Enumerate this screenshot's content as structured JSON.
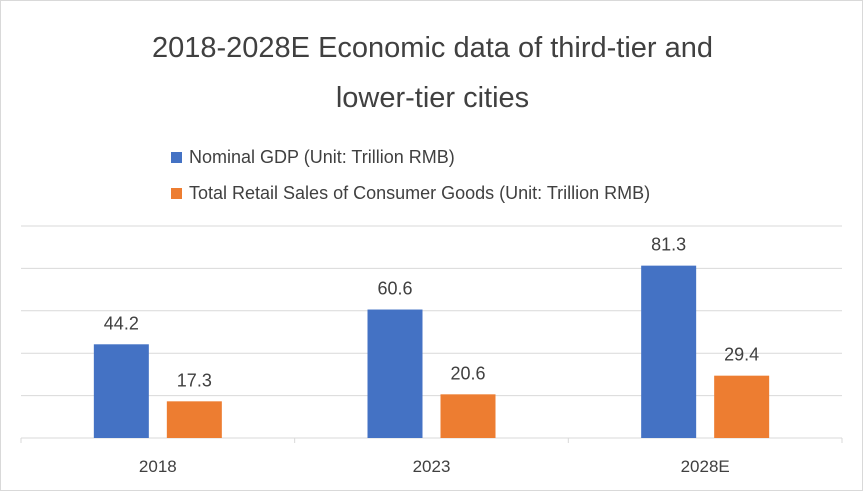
{
  "chart_data": {
    "type": "bar",
    "title": "2018-2028E Economic data of third-tier and lower-tier cities",
    "title_lines": [
      "2018-2028E Economic data of third-tier and",
      "lower-tier cities"
    ],
    "categories": [
      "2018",
      "2023",
      "2028E"
    ],
    "series": [
      {
        "name": "Nominal GDP (Unit: Trillion RMB)",
        "values": [
          44.2,
          60.6,
          81.3
        ],
        "color": "#4472C4"
      },
      {
        "name": "Total Retail Sales of Consumer Goods (Unit: Trillion RMB)",
        "values": [
          17.3,
          20.6,
          29.4
        ],
        "color": "#ED7D31"
      }
    ],
    "ylim": [
      0,
      100
    ],
    "grid": true,
    "legend_position": "top"
  }
}
